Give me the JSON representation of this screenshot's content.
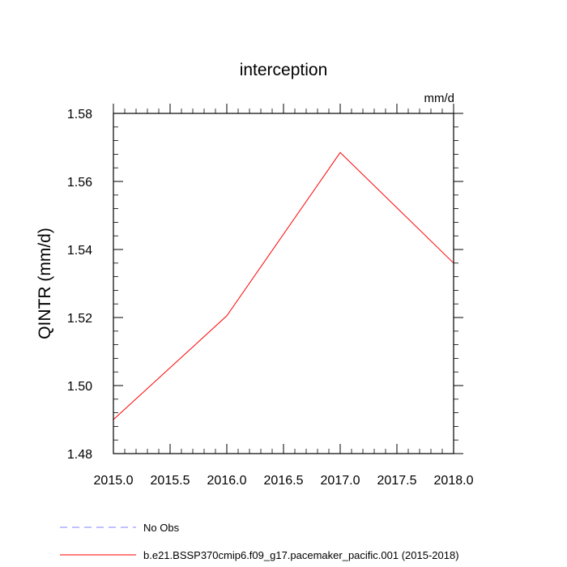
{
  "chart_data": {
    "type": "line",
    "title": "interception",
    "units_label": "mm/d",
    "xlabel": "",
    "ylabel": "QINTR  (mm/d)",
    "xlim": [
      2015.0,
      2018.0
    ],
    "ylim": [
      1.48,
      1.58
    ],
    "x_ticks": [
      "2015.0",
      "2015.5",
      "2016.0",
      "2016.5",
      "2017.0",
      "2017.5",
      "2018.0"
    ],
    "y_ticks": [
      "1.48",
      "1.50",
      "1.52",
      "1.54",
      "1.56",
      "1.58"
    ],
    "grid": false,
    "legend_position": "bottom",
    "series": [
      {
        "name": "b.e21.BSSP370cmip6.f09_g17.pacemaker_pacific.001 (2015-2018)",
        "color": "#ff0000",
        "style": "solid",
        "x": [
          2015,
          2016,
          2017,
          2018
        ],
        "y": [
          1.49,
          1.5205,
          1.5685,
          1.536
        ]
      }
    ],
    "legend": [
      {
        "label": "No Obs",
        "color": "#8080ff",
        "style": "dashed"
      },
      {
        "label": "b.e21.BSSP370cmip6.f09_g17.pacemaker_pacific.001 (2015-2018)",
        "color": "#ff0000",
        "style": "solid"
      }
    ]
  }
}
